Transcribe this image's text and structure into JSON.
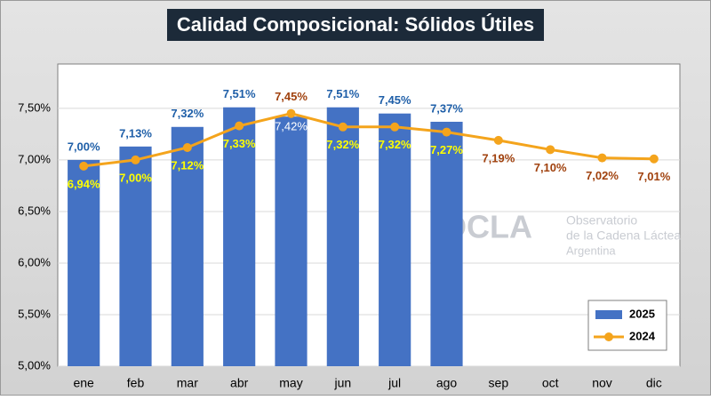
{
  "chart_data": {
    "type": "bar_line",
    "title": "Calidad Composicional: Sólidos Útiles",
    "categories": [
      "ene",
      "feb",
      "mar",
      "abr",
      "may",
      "jun",
      "jul",
      "ago",
      "sep",
      "oct",
      "nov",
      "dic"
    ],
    "series": [
      {
        "name": "2025",
        "type": "bar",
        "color": "#4472c4",
        "values": [
          7.0,
          7.13,
          7.32,
          7.51,
          7.42,
          7.51,
          7.45,
          7.37,
          null,
          null,
          null,
          null
        ],
        "value_labels": [
          "7,00%",
          "7,13%",
          "7,32%",
          "7,51%",
          "7,42%",
          "7,51%",
          "7,45%",
          "7,37%",
          null,
          null,
          null,
          null
        ]
      },
      {
        "name": "2024",
        "type": "line",
        "color": "#f4a41c",
        "values": [
          6.94,
          7.0,
          7.12,
          7.33,
          7.45,
          7.32,
          7.32,
          7.27,
          7.19,
          7.1,
          7.02,
          7.01
        ],
        "value_labels": [
          "6,94%",
          "7,00%",
          "7,12%",
          "7,33%",
          "7,45%",
          "7,32%",
          "7,32%",
          "7,27%",
          "7,19%",
          "7,10%",
          "7,02%",
          "7,01%"
        ]
      }
    ],
    "ylim": [
      5.0,
      7.93
    ],
    "yticks": [
      {
        "value": 5.0,
        "label": "5,00%"
      },
      {
        "value": 5.5,
        "label": "5,50%"
      },
      {
        "value": 6.0,
        "label": "6,00%"
      },
      {
        "value": 6.5,
        "label": "6,50%"
      },
      {
        "value": 7.0,
        "label": "7,00%"
      },
      {
        "value": 7.5,
        "label": "7,50%"
      }
    ],
    "grid": true,
    "legend": "lower right"
  },
  "watermark": {
    "logo": "OCLA",
    "lines": [
      "Observatorio",
      "de la Cadena Láctea",
      "Argentina"
    ]
  }
}
